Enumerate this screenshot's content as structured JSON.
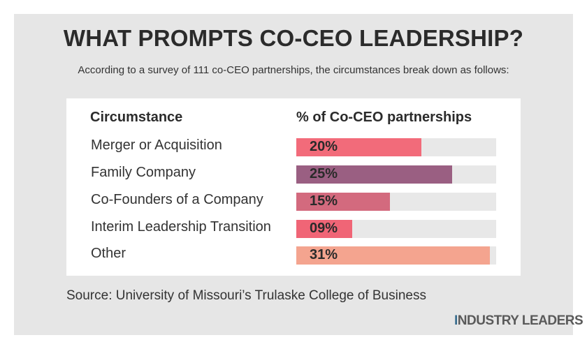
{
  "title": "WHAT PROMPTS CO-CEO LEADERSHIP?",
  "subtitle": "According to a survey of 111 co-CEO partnerships, the circumstances break down as follows:",
  "table": {
    "col_circumstance": "Circumstance",
    "col_percent": "% of Co-CEO partnerships"
  },
  "source": "Source: University of Missouri’s Trulaske College of Business",
  "logo": "INDUSTRY LEADERS",
  "chart_data": {
    "type": "bar",
    "orientation": "horizontal",
    "title": "WHAT PROMPTS CO-CEO LEADERSHIP?",
    "xlabel": "% of Co-CEO partnerships",
    "ylabel": "Circumstance",
    "xlim": [
      0,
      32
    ],
    "categories": [
      "Merger or Acquisition",
      "Family Company",
      "Co-Founders of a Company",
      "Interim Leadership Transition",
      "Other"
    ],
    "values": [
      20,
      25,
      15,
      9,
      31
    ],
    "value_labels": [
      "20%",
      "25%",
      "15%",
      "09%",
      "31%"
    ],
    "colors": [
      "#f26b7a",
      "#9a5f82",
      "#d36a7e",
      "#f06576",
      "#f4a48f"
    ]
  }
}
